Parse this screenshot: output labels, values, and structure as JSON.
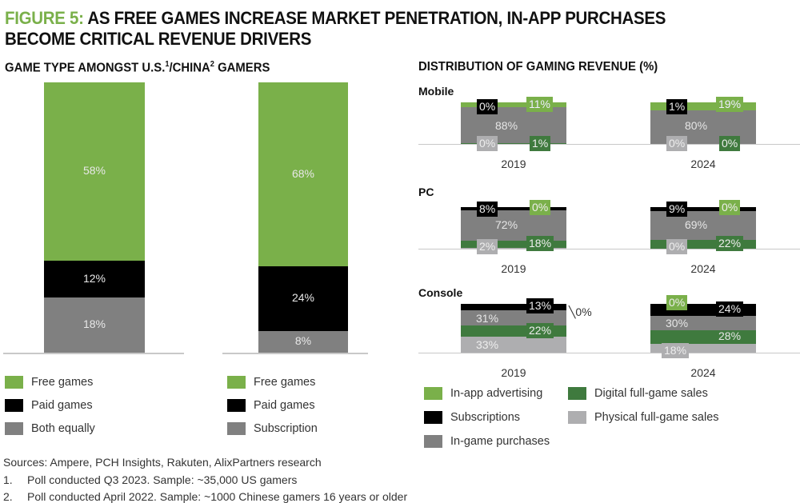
{
  "figure": {
    "label": "FIGURE 5:",
    "title": "AS FREE GAMES INCREASE MARKET PENETRATION, IN-APP PURCHASES BECOME CRITICAL REVENUE DRIVERS"
  },
  "colors": {
    "light_green": "#7ab04a",
    "black": "#000000",
    "mid_gray": "#808080",
    "dark_green": "#3f7a3e",
    "light_gray": "#aeaeb0"
  },
  "chart_data": [
    {
      "type": "bar",
      "stacked": true,
      "title": "GAME TYPE AMONGST U.S.¹/CHINA² GAMERS",
      "title_parts": {
        "a": "GAME TYPE AMONGST U.S.",
        "sup1": "1",
        "b": "/CHINA",
        "sup2": "2",
        "c": " GAMERS"
      },
      "categories": [
        "U.S.",
        "China"
      ],
      "bars": [
        {
          "name": "U.S.",
          "segments": [
            {
              "name": "Free games",
              "value": 58,
              "label": "58%",
              "color": "#7ab04a"
            },
            {
              "name": "Paid games",
              "value": 12,
              "label": "12%",
              "color": "#000000"
            },
            {
              "name": "Both equally",
              "value": 18,
              "label": "18%",
              "color": "#808080"
            }
          ],
          "legend": [
            "Free games",
            "Paid games",
            "Both equally"
          ]
        },
        {
          "name": "China",
          "segments": [
            {
              "name": "Free games",
              "value": 68,
              "label": "68%",
              "color": "#7ab04a"
            },
            {
              "name": "Paid games",
              "value": 24,
              "label": "24%",
              "color": "#000000"
            },
            {
              "name": "Subscription",
              "value": 8,
              "label": "8%",
              "color": "#808080"
            }
          ],
          "legend": [
            "Free games",
            "Paid games",
            "Subscription"
          ]
        }
      ]
    },
    {
      "type": "bar",
      "stacked": true,
      "title": "DISTRIBUTION OF GAMING REVENUE (%)",
      "series_names": [
        "In-app advertising",
        "Subscriptions",
        "In-game purchases",
        "Digital full-game sales",
        "Physical full-game sales"
      ],
      "panels": [
        {
          "name": "Mobile",
          "years": [
            {
              "year": "2019",
              "values": {
                "In-app advertising": 11,
                "Subscriptions": 0,
                "In-game purchases": 88,
                "Digital full-game sales": 1,
                "Physical full-game sales": 0
              }
            },
            {
              "year": "2024",
              "values": {
                "In-app advertising": 19,
                "Subscriptions": 1,
                "In-game purchases": 80,
                "Digital full-game sales": 0,
                "Physical full-game sales": 0
              }
            }
          ]
        },
        {
          "name": "PC",
          "years": [
            {
              "year": "2019",
              "values": {
                "In-app advertising": 0,
                "Subscriptions": 8,
                "In-game purchases": 72,
                "Digital full-game sales": 18,
                "Physical full-game sales": 2
              }
            },
            {
              "year": "2024",
              "values": {
                "In-app advertising": 0,
                "Subscriptions": 9,
                "In-game purchases": 69,
                "Digital full-game sales": 22,
                "Physical full-game sales": 0
              }
            }
          ]
        },
        {
          "name": "Console",
          "years": [
            {
              "year": "2019",
              "values": {
                "In-app advertising": 0,
                "Subscriptions": 13,
                "In-game purchases": 31,
                "Digital full-game sales": 22,
                "Physical full-game sales": 33
              }
            },
            {
              "year": "2024",
              "values": {
                "In-app advertising": 0,
                "Subscriptions": 24,
                "In-game purchases": 30,
                "Digital full-game sales": 28,
                "Physical full-game sales": 18
              }
            }
          ]
        }
      ],
      "legend": [
        {
          "name": "In-app advertising",
          "color": "#7ab04a"
        },
        {
          "name": "Subscriptions",
          "color": "#000000"
        },
        {
          "name": "In-game purchases",
          "color": "#808080"
        },
        {
          "name": "Digital full-game sales",
          "color": "#3f7a3e"
        },
        {
          "name": "Physical full-game sales",
          "color": "#aeaeb0"
        }
      ]
    }
  ],
  "footer": {
    "sources": "Sources: Ampere, PCH Insights, Rakuten, AlixPartners research",
    "notes": [
      {
        "num": "1.",
        "text": "Poll conducted Q3 2023. Sample: ~35,000 US gamers"
      },
      {
        "num": "2.",
        "text": "Poll conducted April 2022. Sample: ~1000 Chinese gamers 16 years or older"
      }
    ]
  }
}
